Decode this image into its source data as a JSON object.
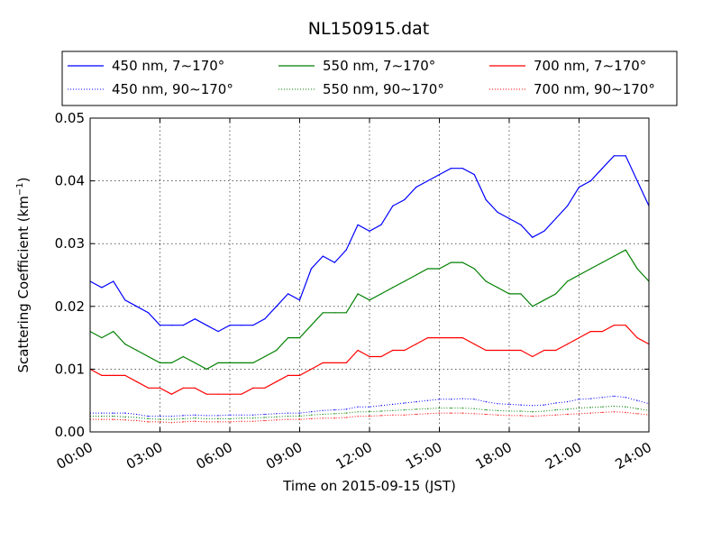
{
  "chart_data": {
    "type": "line",
    "title": "NL150915.dat",
    "xlabel": "Time on 2015-09-15 (JST)",
    "ylabel": "Scattering Coefficient (km",
    "ylabel_sup": "−1",
    "ylabel_close": ")",
    "xlim": [
      0,
      24
    ],
    "ylim": [
      0,
      0.05
    ],
    "grid": true,
    "legend_position": "top",
    "x_ticks": [
      0,
      3,
      6,
      9,
      12,
      15,
      18,
      21,
      24
    ],
    "x_tick_labels": [
      "00:00",
      "03:00",
      "06:00",
      "09:00",
      "12:00",
      "15:00",
      "18:00",
      "21:00",
      "24:00"
    ],
    "y_ticks": [
      0,
      0.01,
      0.02,
      0.03,
      0.04,
      0.05
    ],
    "y_tick_labels": [
      "0.00",
      "0.01",
      "0.02",
      "0.03",
      "0.04",
      "0.05"
    ],
    "x": [
      0,
      0.5,
      1,
      1.5,
      2,
      2.5,
      3,
      3.5,
      4,
      4.5,
      5,
      5.5,
      6,
      6.5,
      7,
      7.5,
      8,
      8.5,
      9,
      9.5,
      10,
      10.5,
      11,
      11.5,
      12,
      12.5,
      13,
      13.5,
      14,
      14.5,
      15,
      15.5,
      16,
      16.5,
      17,
      17.5,
      18,
      18.5,
      19,
      19.5,
      20,
      20.5,
      21,
      21.5,
      22,
      22.5,
      23,
      23.5,
      24
    ],
    "series": [
      {
        "name": "450 nm, 7∼170°",
        "color": "#0000ff",
        "style": "solid",
        "values": [
          0.024,
          0.023,
          0.024,
          0.021,
          0.02,
          0.019,
          0.017,
          0.017,
          0.017,
          0.018,
          0.017,
          0.016,
          0.017,
          0.017,
          0.017,
          0.018,
          0.02,
          0.022,
          0.021,
          0.026,
          0.028,
          0.027,
          0.029,
          0.033,
          0.032,
          0.033,
          0.036,
          0.037,
          0.039,
          0.04,
          0.041,
          0.042,
          0.042,
          0.041,
          0.037,
          0.035,
          0.034,
          0.033,
          0.031,
          0.032,
          0.034,
          0.036,
          0.039,
          0.04,
          0.042,
          0.044,
          0.044,
          0.04,
          0.036
        ]
      },
      {
        "name": "550 nm, 7∼170°",
        "color": "#008000",
        "style": "solid",
        "values": [
          0.016,
          0.015,
          0.016,
          0.014,
          0.013,
          0.012,
          0.011,
          0.011,
          0.012,
          0.011,
          0.01,
          0.011,
          0.011,
          0.011,
          0.011,
          0.012,
          0.013,
          0.015,
          0.015,
          0.017,
          0.019,
          0.019,
          0.019,
          0.022,
          0.021,
          0.022,
          0.023,
          0.024,
          0.025,
          0.026,
          0.026,
          0.027,
          0.027,
          0.026,
          0.024,
          0.023,
          0.022,
          0.022,
          0.02,
          0.021,
          0.022,
          0.024,
          0.025,
          0.026,
          0.027,
          0.028,
          0.029,
          0.026,
          0.024
        ]
      },
      {
        "name": "700 nm, 7∼170°",
        "color": "#ff0000",
        "style": "solid",
        "values": [
          0.01,
          0.009,
          0.009,
          0.009,
          0.008,
          0.007,
          0.007,
          0.006,
          0.007,
          0.007,
          0.006,
          0.006,
          0.006,
          0.006,
          0.007,
          0.007,
          0.008,
          0.009,
          0.009,
          0.01,
          0.011,
          0.011,
          0.011,
          0.013,
          0.012,
          0.012,
          0.013,
          0.013,
          0.014,
          0.015,
          0.015,
          0.015,
          0.015,
          0.014,
          0.013,
          0.013,
          0.013,
          0.013,
          0.012,
          0.013,
          0.013,
          0.014,
          0.015,
          0.016,
          0.016,
          0.017,
          0.017,
          0.015,
          0.014
        ]
      },
      {
        "name": "450 nm, 90∼170°",
        "color": "#0000ff",
        "style": "dotted",
        "values": [
          0.003,
          0.003,
          0.003,
          0.003,
          0.0028,
          0.0025,
          0.0025,
          0.0025,
          0.0026,
          0.0027,
          0.0026,
          0.0026,
          0.0027,
          0.0027,
          0.0027,
          0.0028,
          0.0029,
          0.003,
          0.003,
          0.0032,
          0.0034,
          0.0035,
          0.0036,
          0.004,
          0.004,
          0.0042,
          0.0044,
          0.0046,
          0.0048,
          0.005,
          0.0052,
          0.0052,
          0.0053,
          0.0052,
          0.0048,
          0.0045,
          0.0044,
          0.0043,
          0.0042,
          0.0043,
          0.0046,
          0.0048,
          0.0052,
          0.0053,
          0.0055,
          0.0057,
          0.0055,
          0.005,
          0.0045
        ]
      },
      {
        "name": "550 nm, 90∼170°",
        "color": "#008000",
        "style": "dotted",
        "values": [
          0.0025,
          0.0025,
          0.0025,
          0.0024,
          0.0023,
          0.0021,
          0.002,
          0.002,
          0.0021,
          0.0022,
          0.0021,
          0.0021,
          0.0021,
          0.0022,
          0.0022,
          0.0023,
          0.0024,
          0.0025,
          0.0025,
          0.0027,
          0.0028,
          0.0029,
          0.003,
          0.0032,
          0.0032,
          0.0033,
          0.0034,
          0.0035,
          0.0036,
          0.0037,
          0.0038,
          0.0038,
          0.0038,
          0.0037,
          0.0035,
          0.0034,
          0.0033,
          0.0033,
          0.0032,
          0.0033,
          0.0035,
          0.0036,
          0.0038,
          0.0039,
          0.004,
          0.0041,
          0.004,
          0.0037,
          0.0034
        ]
      },
      {
        "name": "700 nm, 90∼170°",
        "color": "#ff0000",
        "style": "dotted",
        "values": [
          0.002,
          0.002,
          0.002,
          0.0019,
          0.0018,
          0.0016,
          0.0016,
          0.0015,
          0.0016,
          0.0017,
          0.0016,
          0.0016,
          0.0016,
          0.0017,
          0.0017,
          0.0018,
          0.0019,
          0.002,
          0.002,
          0.0021,
          0.0022,
          0.0022,
          0.0023,
          0.0025,
          0.0025,
          0.0026,
          0.0027,
          0.0027,
          0.0028,
          0.0029,
          0.003,
          0.003,
          0.003,
          0.0029,
          0.0028,
          0.0027,
          0.0026,
          0.0026,
          0.0025,
          0.0026,
          0.0027,
          0.0028,
          0.0029,
          0.003,
          0.0031,
          0.0032,
          0.0031,
          0.0029,
          0.0027
        ]
      }
    ],
    "legend_order": [
      0,
      1,
      2,
      3,
      4,
      5
    ]
  }
}
